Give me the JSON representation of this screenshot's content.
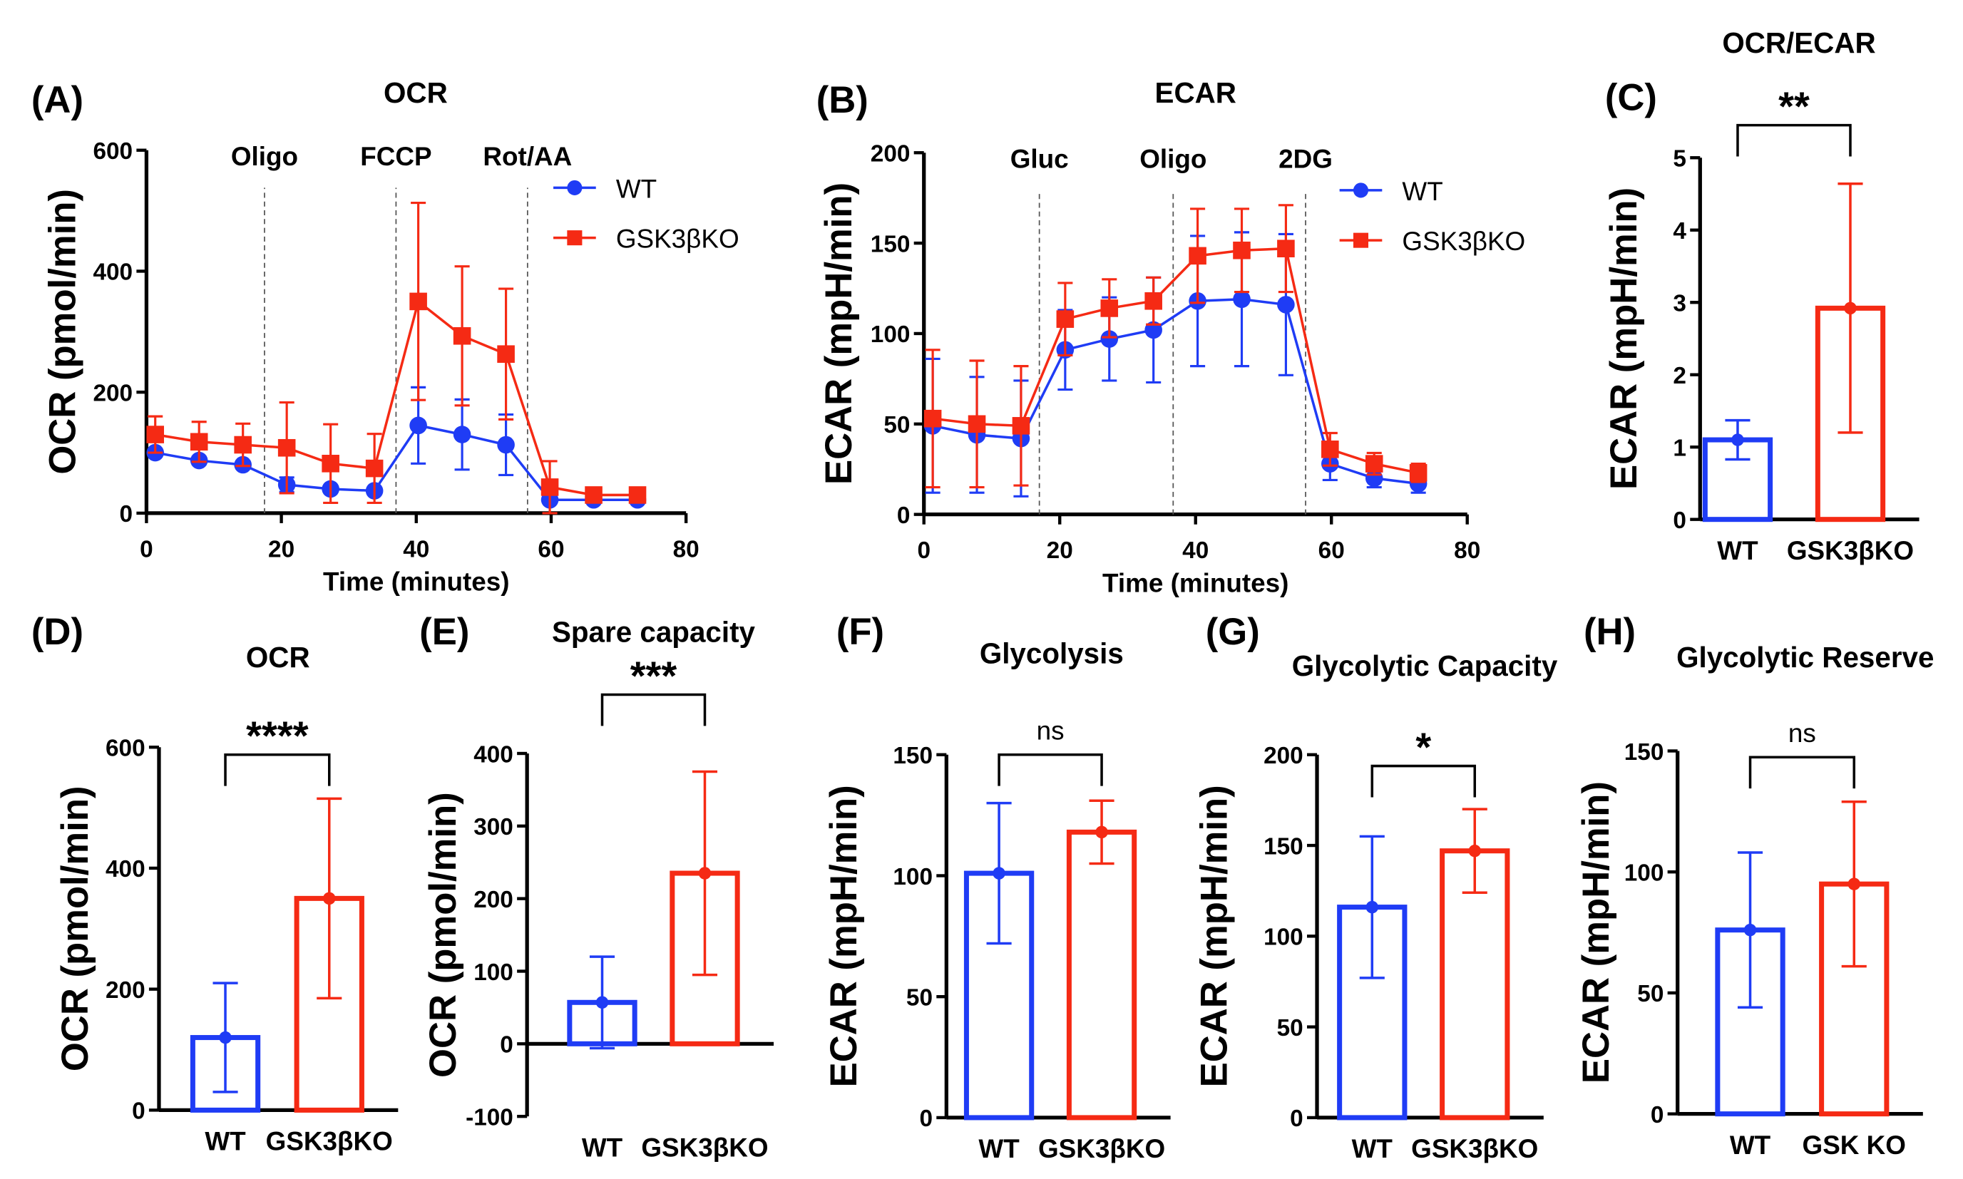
{
  "colors": {
    "wt": "#1f3cf5",
    "ko": "#f52a14"
  },
  "chart_data": [
    {
      "type": "line",
      "letter": "(A)",
      "title": "OCR",
      "xlabel": "Time (minutes)",
      "ylabel": "OCR (pmol/min)",
      "xlim": [
        0,
        80
      ],
      "ylim": [
        0,
        600
      ],
      "xticks": [
        "0",
        "20",
        "40",
        "60",
        "80"
      ],
      "yticks": [
        "0",
        "200",
        "400",
        "600"
      ],
      "injections": [
        {
          "label": "Oligo",
          "x": 17.5
        },
        {
          "label": "FCCP",
          "x": 37
        },
        {
          "label": "Rot/AA",
          "x": 56.5
        }
      ],
      "x": [
        1.3,
        7.8,
        14.3,
        20.8,
        27.3,
        33.8,
        40.3,
        46.8,
        53.3,
        59.8,
        66.3,
        72.8
      ],
      "series": [
        {
          "name": "WT",
          "values": [
            100,
            87,
            80,
            47,
            40,
            37,
            145,
            130,
            113,
            22,
            22,
            22
          ],
          "errors": [
            6,
            6,
            6,
            12,
            4,
            4,
            63,
            58,
            50,
            3,
            3,
            3
          ]
        },
        {
          "name": "GSK3βKO",
          "values": [
            130,
            118,
            113,
            108,
            82,
            74,
            350,
            293,
            263,
            43,
            30,
            30
          ],
          "errors": [
            30,
            33,
            35,
            75,
            65,
            57,
            163,
            115,
            108,
            43,
            5,
            5
          ]
        }
      ],
      "legend": "top-right"
    },
    {
      "type": "line",
      "letter": "(B)",
      "title": "ECAR",
      "xlabel": "Time (minutes)",
      "ylabel": "ECAR (mpH/min)",
      "xlim": [
        0,
        80
      ],
      "ylim": [
        0,
        200
      ],
      "xticks": [
        "0",
        "20",
        "40",
        "60",
        "80"
      ],
      "yticks": [
        "0",
        "50",
        "100",
        "150",
        "200"
      ],
      "injections": [
        {
          "label": "Gluc",
          "x": 17
        },
        {
          "label": "Oligo",
          "x": 36.7
        },
        {
          "label": "2DG",
          "x": 56.2
        }
      ],
      "x": [
        1.3,
        7.8,
        14.3,
        20.8,
        27.3,
        33.8,
        40.3,
        46.8,
        53.3,
        59.8,
        66.3,
        72.8
      ],
      "series": [
        {
          "name": "WT",
          "values": [
            49,
            44,
            42,
            91,
            97,
            102,
            118,
            119,
            116,
            28,
            20,
            17
          ],
          "errors": [
            37,
            32,
            32,
            22,
            23,
            29,
            36,
            37,
            39,
            9,
            5,
            5
          ]
        },
        {
          "name": "GSK3βKO",
          "values": [
            53,
            50,
            49,
            108,
            114,
            118,
            143,
            146,
            147,
            36,
            28,
            23
          ],
          "errors": [
            38,
            35,
            33,
            20,
            16,
            13,
            26,
            23,
            24,
            9,
            6,
            5
          ]
        }
      ],
      "legend": "top-right"
    },
    {
      "type": "bar",
      "letter": "(C)",
      "title": "OCR/ECAR",
      "ylabel": "ECAR (mpH/min)",
      "ylim": [
        0,
        5
      ],
      "yticks": [
        "0",
        "1",
        "2",
        "3",
        "4",
        "5"
      ],
      "categories": [
        "WT",
        "GSK3βKO"
      ],
      "values": [
        1.1,
        2.92
      ],
      "errors": [
        0.27,
        1.72
      ],
      "significance": "**"
    },
    {
      "type": "bar",
      "letter": "(D)",
      "title": "OCR",
      "ylabel": "OCR (pmol/min)",
      "ylim": [
        0,
        600
      ],
      "yticks": [
        "0",
        "200",
        "400",
        "600"
      ],
      "categories": [
        "WT",
        "GSK3βKO"
      ],
      "values": [
        120,
        350
      ],
      "errors": [
        90,
        165
      ],
      "significance": "****"
    },
    {
      "type": "bar",
      "letter": "(E)",
      "title": "Spare capacity",
      "ylabel": "OCR (pmol/min)",
      "ylim": [
        -100,
        400
      ],
      "yticks": [
        "-100",
        "0",
        "100",
        "200",
        "300",
        "400"
      ],
      "categories": [
        "WT",
        "GSK3βKO"
      ],
      "values": [
        57,
        235
      ],
      "errors": [
        63,
        140
      ],
      "significance": "***"
    },
    {
      "type": "bar",
      "letter": "(F)",
      "title": "Glycolysis",
      "ylabel": "ECAR (mpH/min)",
      "ylim": [
        0,
        150
      ],
      "yticks": [
        "0",
        "50",
        "100",
        "150"
      ],
      "categories": [
        "WT",
        "GSK3βKO"
      ],
      "values": [
        101,
        118
      ],
      "errors": [
        29,
        13
      ],
      "significance": "ns"
    },
    {
      "type": "bar",
      "letter": "(G)",
      "title": "Glycolytic Capacity",
      "ylabel": "ECAR (mpH/min)",
      "ylim": [
        0,
        200
      ],
      "yticks": [
        "0",
        "50",
        "100",
        "150",
        "200"
      ],
      "categories": [
        "WT",
        "GSK3βKO"
      ],
      "values": [
        116,
        147
      ],
      "errors": [
        39,
        23
      ],
      "significance": "*"
    },
    {
      "type": "bar",
      "letter": "(H)",
      "title": "Glycolytic Reserve",
      "ylabel": "ECAR (mpH/min)",
      "ylim": [
        0,
        150
      ],
      "yticks": [
        "0",
        "50",
        "100",
        "150"
      ],
      "categories": [
        "WT",
        "GSK KO"
      ],
      "values": [
        76,
        95
      ],
      "errors": [
        32,
        34
      ],
      "significance": "ns"
    }
  ]
}
